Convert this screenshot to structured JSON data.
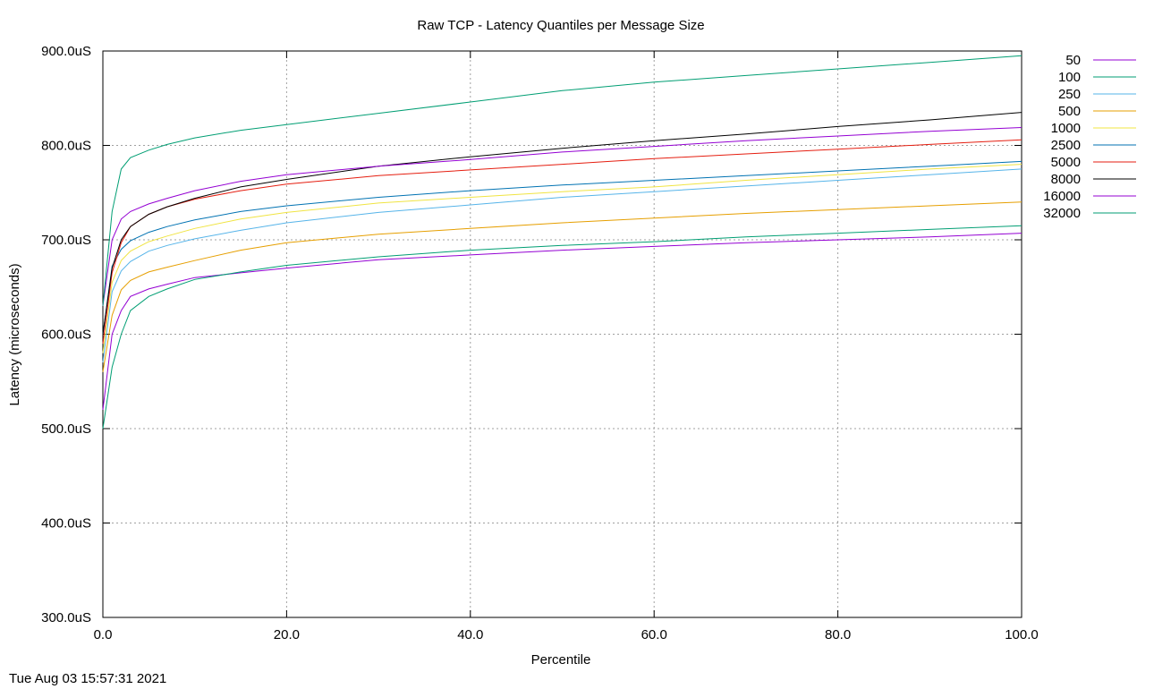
{
  "chart_data": {
    "type": "line",
    "title": "Raw TCP - Latency Quantiles per Message Size",
    "xlabel": "Percentile",
    "ylabel": "Latency (microseconds)",
    "xlim": [
      0,
      100
    ],
    "ylim": [
      300,
      900
    ],
    "xticks": [
      "0.0",
      "20.0",
      "40.0",
      "60.0",
      "80.0",
      "100.0"
    ],
    "yticks": [
      "300.0uS",
      "400.0uS",
      "500.0uS",
      "600.0uS",
      "700.0uS",
      "800.0uS",
      "900.0uS"
    ],
    "grid": true,
    "legend_position": "outside-top-right",
    "x": [
      0,
      1,
      2,
      3,
      5,
      7,
      10,
      15,
      20,
      30,
      40,
      50,
      60,
      70,
      80,
      90,
      100
    ],
    "series": [
      {
        "name": "50",
        "color": "#9400d3",
        "values": [
          520,
          600,
          625,
          640,
          648,
          653,
          660,
          665,
          670,
          679,
          684,
          689,
          693,
          697,
          700,
          703,
          707
        ]
      },
      {
        "name": "100",
        "color": "#009e73",
        "values": [
          500,
          565,
          600,
          625,
          640,
          648,
          658,
          666,
          673,
          682,
          689,
          694,
          698,
          703,
          707,
          711,
          715
        ]
      },
      {
        "name": "250",
        "color": "#56b4e9",
        "values": [
          570,
          645,
          667,
          677,
          688,
          694,
          701,
          710,
          718,
          729,
          737,
          745,
          751,
          757,
          763,
          769,
          775
        ]
      },
      {
        "name": "500",
        "color": "#e69f00",
        "values": [
          560,
          620,
          647,
          657,
          666,
          671,
          678,
          689,
          697,
          706,
          712,
          718,
          723,
          728,
          732,
          736,
          740
        ]
      },
      {
        "name": "1000",
        "color": "#f0e442",
        "values": [
          580,
          655,
          678,
          688,
          698,
          704,
          712,
          722,
          729,
          739,
          745,
          751,
          756,
          763,
          769,
          775,
          780
        ]
      },
      {
        "name": "2500",
        "color": "#0072b2",
        "values": [
          600,
          672,
          690,
          699,
          708,
          714,
          721,
          730,
          736,
          745,
          752,
          758,
          763,
          768,
          773,
          778,
          783
        ]
      },
      {
        "name": "5000",
        "color": "#e51e10",
        "values": [
          590,
          665,
          697,
          714,
          727,
          735,
          743,
          752,
          759,
          768,
          774,
          780,
          786,
          791,
          796,
          801,
          806
        ]
      },
      {
        "name": "8000",
        "color": "#000000",
        "values": [
          600,
          670,
          700,
          714,
          727,
          735,
          744,
          756,
          764,
          778,
          788,
          797,
          805,
          812,
          820,
          827,
          835
        ]
      },
      {
        "name": "16000",
        "color": "#9400d3",
        "values": [
          630,
          700,
          722,
          730,
          738,
          744,
          752,
          762,
          769,
          778,
          785,
          793,
          799,
          805,
          810,
          815,
          819
        ]
      },
      {
        "name": "32000",
        "color": "#009e73",
        "values": [
          630,
          730,
          775,
          787,
          795,
          801,
          808,
          816,
          822,
          834,
          846,
          858,
          867,
          874,
          881,
          888,
          895
        ]
      }
    ]
  },
  "footer": {
    "timestamp": "Tue Aug 03 15:57:31 2021"
  }
}
